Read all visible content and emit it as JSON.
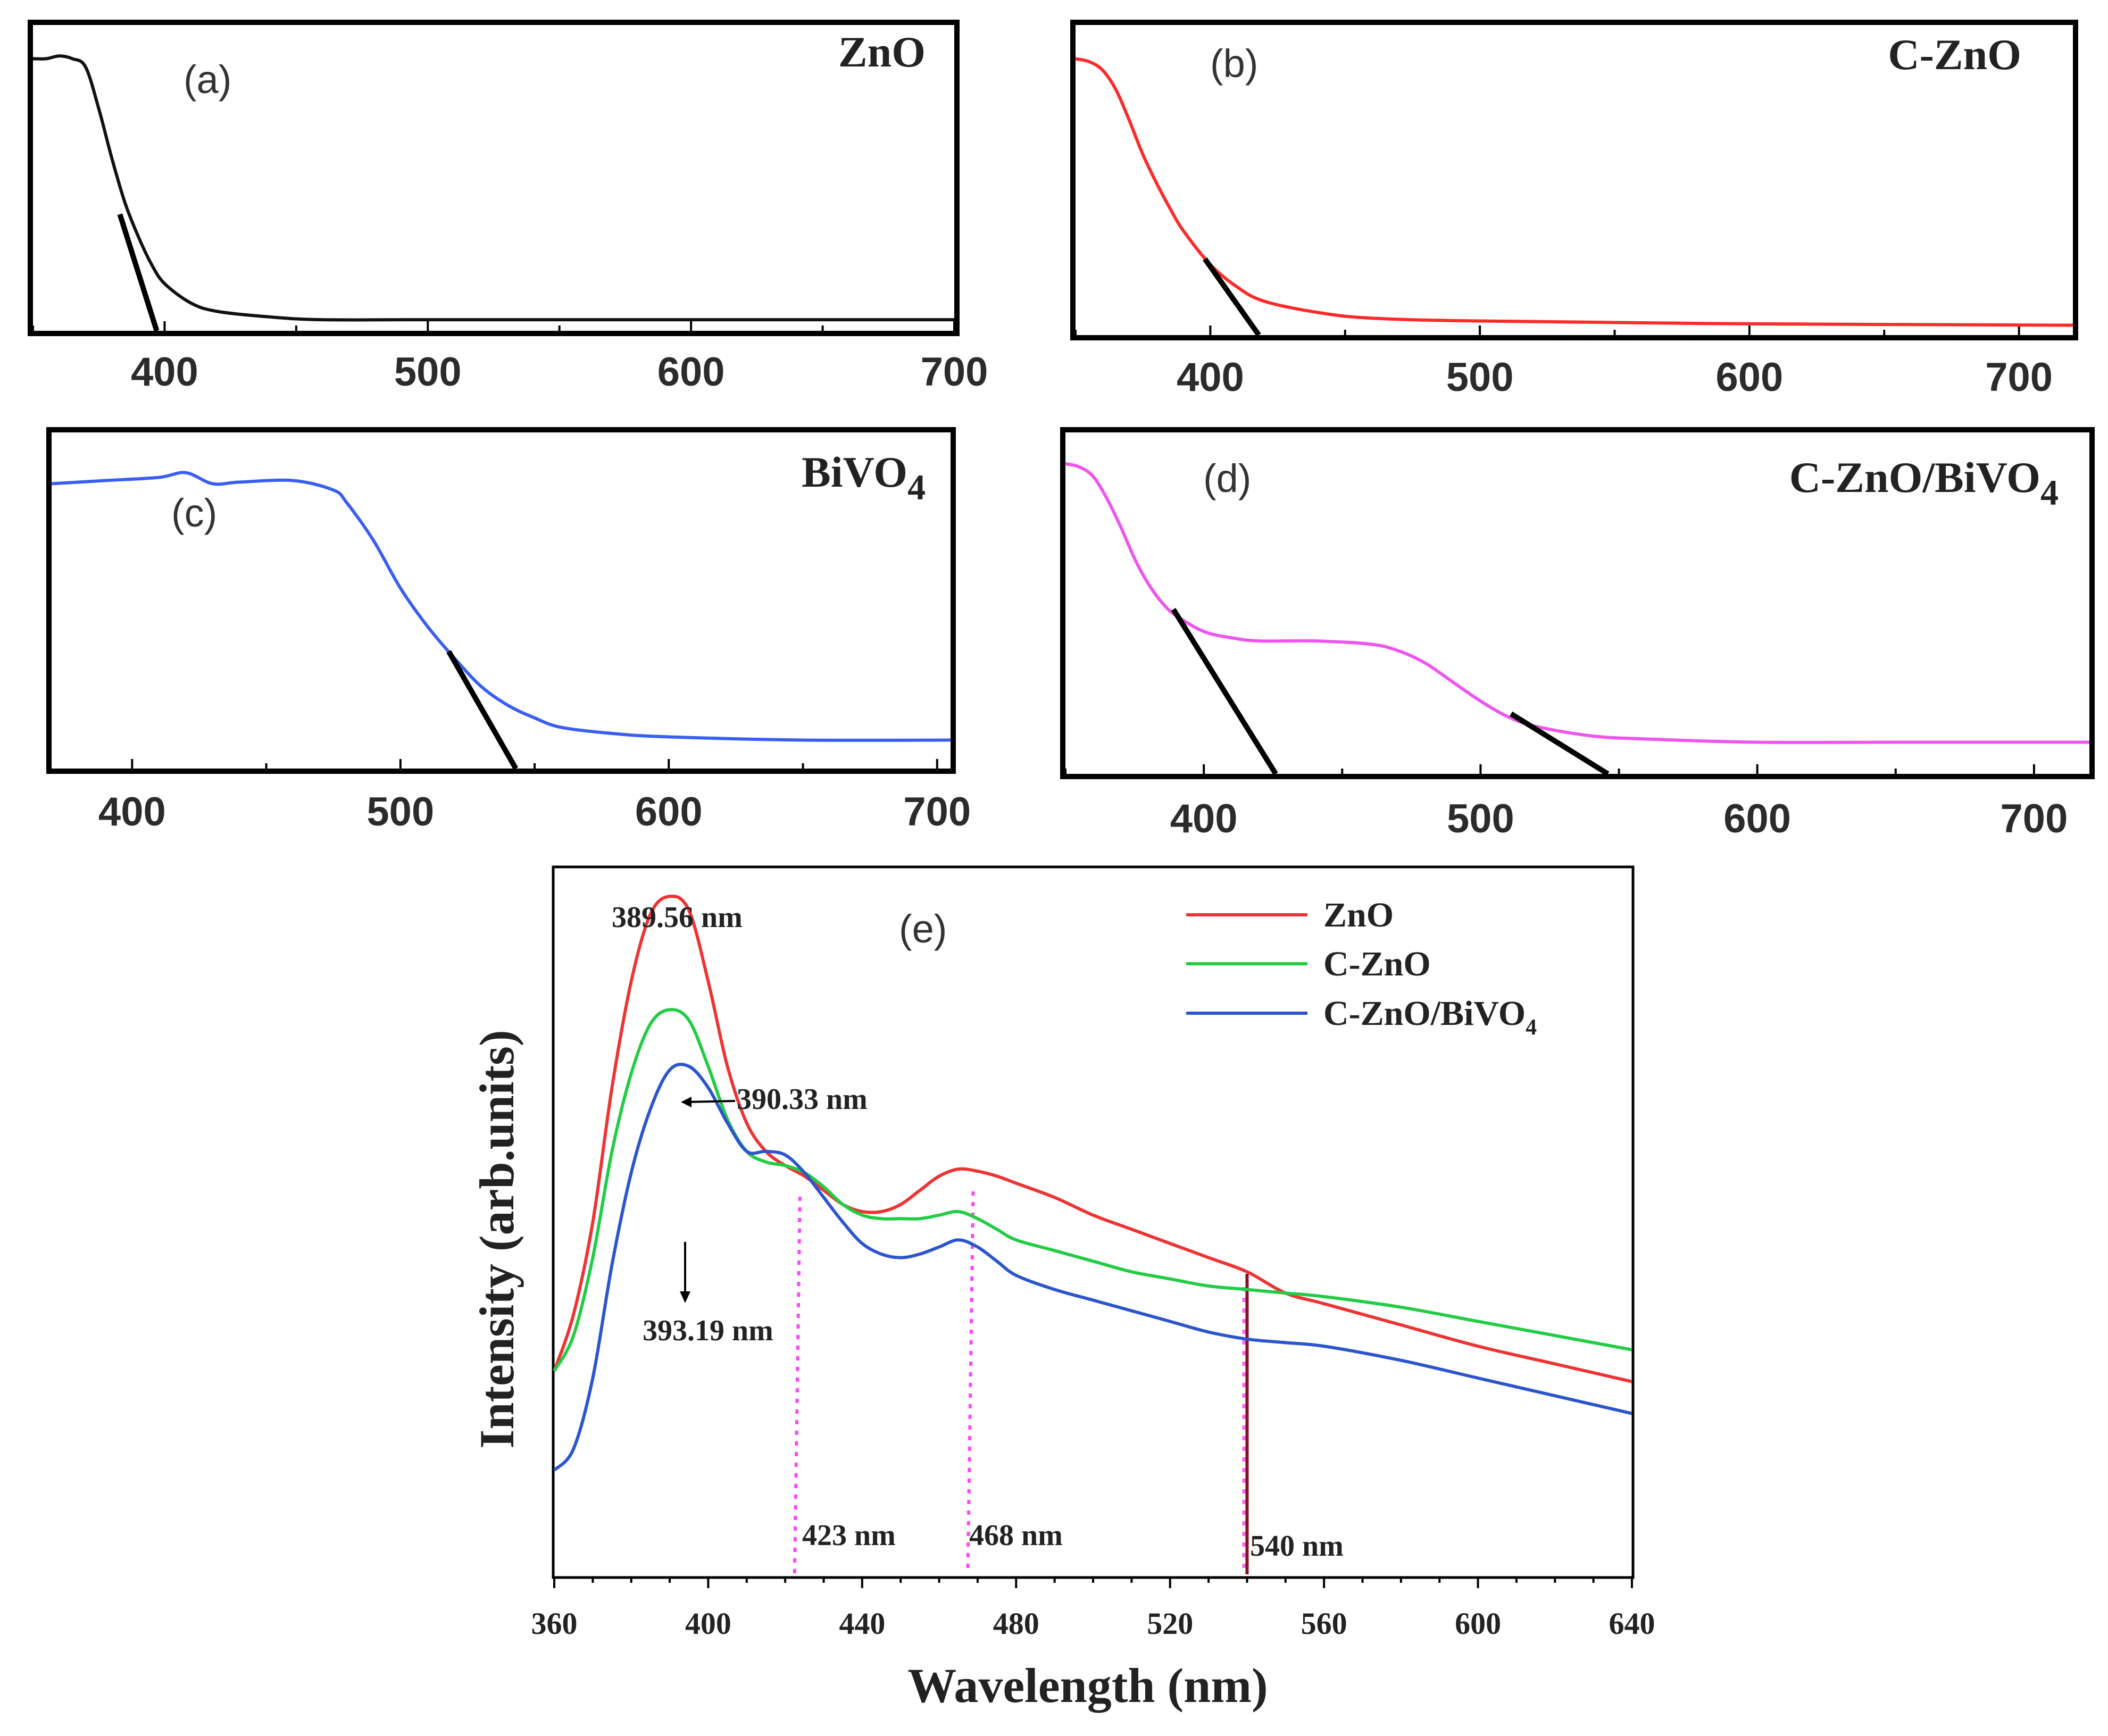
{
  "chart_data": [
    {
      "id": "a",
      "type": "line",
      "panel_label": "(a)",
      "title": "ZnO",
      "xlim": [
        350,
        700
      ],
      "xticks": [
        400,
        500,
        600,
        700
      ],
      "ylabel": "",
      "xlabel": "",
      "color": "#111111",
      "x": [
        350,
        355,
        360,
        365,
        370,
        375,
        380,
        385,
        390,
        395,
        400,
        410,
        420,
        440,
        460,
        500,
        600,
        700
      ],
      "values": [
        0.98,
        0.98,
        0.99,
        0.98,
        0.95,
        0.8,
        0.62,
        0.46,
        0.34,
        0.24,
        0.17,
        0.1,
        0.07,
        0.05,
        0.04,
        0.04,
        0.04,
        0.04
      ],
      "tangent": [
        [
          383,
          0.42
        ],
        [
          397,
          0.0
        ]
      ],
      "onset": 397
    },
    {
      "id": "b",
      "type": "line",
      "panel_label": "(b)",
      "title": "C-ZnO",
      "xlim": [
        350,
        720
      ],
      "xticks": [
        400,
        500,
        600,
        700
      ],
      "ylabel": "",
      "xlabel": "",
      "color": "#ff2a2a",
      "x": [
        350,
        355,
        360,
        365,
        370,
        375,
        380,
        385,
        390,
        400,
        410,
        420,
        440,
        460,
        500,
        600,
        720
      ],
      "values": [
        0.98,
        0.97,
        0.94,
        0.87,
        0.76,
        0.64,
        0.54,
        0.45,
        0.37,
        0.25,
        0.17,
        0.12,
        0.08,
        0.06,
        0.05,
        0.04,
        0.035
      ],
      "tangent": [
        [
          398,
          0.27
        ],
        [
          418,
          0.0
        ]
      ],
      "onset": 418
    },
    {
      "id": "c",
      "type": "line",
      "panel_label": "(c)",
      "title": "BiVO",
      "title_sub": "4",
      "xlim": [
        370,
        705
      ],
      "xticks": [
        400,
        500,
        600,
        700
      ],
      "ylabel": "",
      "xlabel": "",
      "color": "#3a5ef0",
      "x": [
        370,
        390,
        410,
        420,
        430,
        440,
        460,
        475,
        480,
        490,
        500,
        510,
        520,
        530,
        540,
        550,
        560,
        580,
        600,
        650,
        705
      ],
      "values": [
        0.9,
        0.91,
        0.92,
        0.935,
        0.9,
        0.905,
        0.91,
        0.88,
        0.84,
        0.72,
        0.57,
        0.45,
        0.35,
        0.26,
        0.2,
        0.16,
        0.13,
        0.11,
        0.1,
        0.09,
        0.09
      ],
      "tangent": [
        [
          518,
          0.37
        ],
        [
          543,
          0.0
        ]
      ],
      "onset": 543
    },
    {
      "id": "d",
      "type": "line",
      "panel_label": "(d)",
      "title": "C-ZnO/BiVO",
      "title_sub": "4",
      "xlim": [
        350,
        720
      ],
      "xticks": [
        400,
        500,
        600,
        700
      ],
      "ylabel": "",
      "xlabel": "",
      "color": "#ee55ee",
      "x": [
        350,
        355,
        360,
        365,
        370,
        375,
        380,
        385,
        390,
        400,
        410,
        420,
        440,
        460,
        470,
        480,
        490,
        500,
        510,
        520,
        540,
        560,
        600,
        650,
        720
      ],
      "values": [
        0.98,
        0.97,
        0.94,
        0.87,
        0.78,
        0.68,
        0.6,
        0.54,
        0.5,
        0.45,
        0.43,
        0.42,
        0.42,
        0.41,
        0.39,
        0.35,
        0.29,
        0.23,
        0.18,
        0.15,
        0.12,
        0.11,
        0.1,
        0.1,
        0.1
      ],
      "tangents": [
        [
          [
            389,
            0.52
          ],
          [
            426,
            0.0
          ]
        ],
        [
          [
            511,
            0.19
          ],
          [
            546,
            0.0
          ]
        ]
      ],
      "onsets": [
        426,
        546
      ]
    },
    {
      "id": "e",
      "type": "line",
      "panel_label": "(e)",
      "title": "",
      "xlabel": "Wavelength (nm)",
      "ylabel": "Intensity (arb.units)",
      "xlim": [
        360,
        640
      ],
      "ylim": [
        0,
        1
      ],
      "xticks": [
        360,
        400,
        440,
        480,
        520,
        560,
        600,
        640
      ],
      "x": [
        360,
        365,
        370,
        375,
        380,
        385,
        390,
        395,
        400,
        405,
        410,
        415,
        420,
        425,
        430,
        435,
        440,
        445,
        450,
        455,
        460,
        465,
        470,
        475,
        480,
        490,
        500,
        510,
        520,
        530,
        540,
        550,
        560,
        580,
        600,
        620,
        640
      ],
      "series": [
        {
          "name": "ZnO",
          "color": "#ee3333",
          "values": [
            0.29,
            0.37,
            0.5,
            0.69,
            0.84,
            0.935,
            0.96,
            0.94,
            0.84,
            0.72,
            0.64,
            0.6,
            0.58,
            0.565,
            0.545,
            0.525,
            0.515,
            0.515,
            0.525,
            0.545,
            0.565,
            0.575,
            0.572,
            0.565,
            0.555,
            0.535,
            0.51,
            0.49,
            0.47,
            0.45,
            0.43,
            0.4,
            0.385,
            0.355,
            0.325,
            0.3,
            0.275
          ]
        },
        {
          "name": "C-ZnO",
          "color": "#22cc44",
          "values": [
            0.29,
            0.34,
            0.45,
            0.6,
            0.71,
            0.78,
            0.8,
            0.785,
            0.72,
            0.645,
            0.6,
            0.585,
            0.58,
            0.57,
            0.55,
            0.525,
            0.51,
            0.505,
            0.505,
            0.505,
            0.51,
            0.515,
            0.505,
            0.49,
            0.475,
            0.46,
            0.445,
            0.43,
            0.42,
            0.41,
            0.405,
            0.4,
            0.395,
            0.38,
            0.36,
            0.34,
            0.32
          ]
        },
        {
          "name": "C-ZnO/BiVO4",
          "legend_text": "C-ZnO/BiVO",
          "legend_sub": "4",
          "color": "#2b55cc",
          "values": [
            0.15,
            0.18,
            0.28,
            0.44,
            0.57,
            0.66,
            0.715,
            0.72,
            0.69,
            0.64,
            0.6,
            0.6,
            0.595,
            0.57,
            0.535,
            0.5,
            0.47,
            0.455,
            0.45,
            0.455,
            0.465,
            0.475,
            0.465,
            0.445,
            0.425,
            0.405,
            0.39,
            0.375,
            0.36,
            0.345,
            0.335,
            0.33,
            0.325,
            0.305,
            0.28,
            0.255,
            0.23
          ]
        }
      ],
      "annotations": [
        {
          "text": "389.56 nm",
          "x": 389.56
        },
        {
          "text": "390.33 nm",
          "x": 390.33
        },
        {
          "text": "393.19 nm",
          "x": 393.19
        },
        {
          "text": "423 nm",
          "x": 423
        },
        {
          "text": "468 nm",
          "x": 468
        },
        {
          "text": "540 nm",
          "x": 540
        }
      ],
      "legend_position": "top-right"
    }
  ]
}
